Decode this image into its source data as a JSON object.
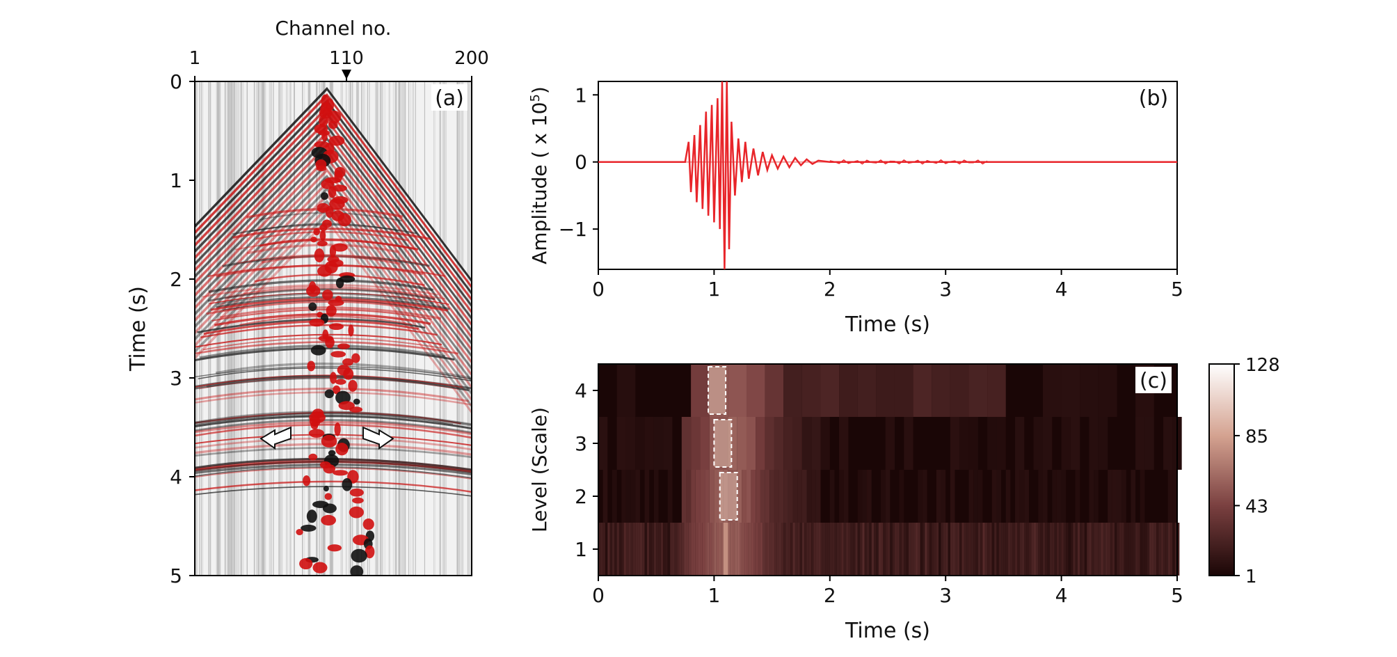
{
  "chart_data": [
    {
      "panel": "(a)",
      "type": "heatmap",
      "description_type": "seismic shot gather",
      "xlabel": "Channel no.",
      "ylabel": "Time (s)",
      "x_ticks": [
        1,
        110,
        200
      ],
      "x_marker": 110,
      "xlim": [
        1,
        200
      ],
      "y_ticks": [
        0,
        1,
        2,
        3,
        4,
        5
      ],
      "ylim": [
        0,
        5
      ],
      "y_inverted": true,
      "source_channel": 96,
      "arrows_at_time": 3.6,
      "colors": {
        "positive": "#d01010",
        "negative": "#111111",
        "background": "#f2f2f2"
      }
    },
    {
      "panel": "(b)",
      "type": "line",
      "xlabel": "Time (s)",
      "ylabel": "Amplitude ( x 10",
      "ylabel_exponent": "5",
      "ylabel_close": ")",
      "xlim": [
        0,
        5
      ],
      "ylim": [
        -1.6,
        1.2
      ],
      "x_ticks": [
        0,
        1,
        2,
        3,
        4,
        5
      ],
      "y_ticks": [
        -1,
        0,
        1
      ],
      "color": "#e8252a",
      "series_points": {
        "x": [
          0,
          0.75,
          0.78,
          0.8,
          0.83,
          0.85,
          0.88,
          0.9,
          0.93,
          0.95,
          0.98,
          1.0,
          1.03,
          1.05,
          1.07,
          1.09,
          1.11,
          1.13,
          1.15,
          1.18,
          1.21,
          1.24,
          1.27,
          1.3,
          1.34,
          1.38,
          1.42,
          1.46,
          1.5,
          1.55,
          1.6,
          1.65,
          1.7,
          1.75,
          1.8,
          1.85,
          1.9,
          2.0,
          5.0
        ],
        "y": [
          0,
          0,
          0.3,
          -0.45,
          0.4,
          -0.6,
          0.55,
          -0.7,
          0.75,
          -0.8,
          0.85,
          -0.9,
          0.95,
          -1.0,
          1.2,
          -1.6,
          1.2,
          -1.3,
          0.6,
          -0.5,
          0.35,
          -0.3,
          0.3,
          -0.25,
          0.2,
          -0.2,
          0.15,
          -0.12,
          0.1,
          -0.1,
          0.08,
          -0.08,
          0.06,
          -0.05,
          0.04,
          -0.03,
          0.02,
          0,
          0
        ]
      }
    },
    {
      "panel": "(c)",
      "type": "heatmap",
      "xlabel": "Time (s)",
      "ylabel": "Level (Scale)",
      "xlim": [
        0,
        5
      ],
      "x_ticks": [
        0,
        1,
        2,
        3,
        4,
        5
      ],
      "levels": [
        1,
        2,
        3,
        4
      ],
      "colorbar": {
        "min": 1,
        "max": 128,
        "ticks": [
          1,
          43,
          85,
          128
        ]
      },
      "highlight_boxes": [
        {
          "level": 4,
          "t_start": 0.95,
          "t_end": 1.1
        },
        {
          "level": 3,
          "t_start": 1.0,
          "t_end": 1.15
        },
        {
          "level": 2,
          "t_start": 1.05,
          "t_end": 1.2
        }
      ]
    }
  ]
}
